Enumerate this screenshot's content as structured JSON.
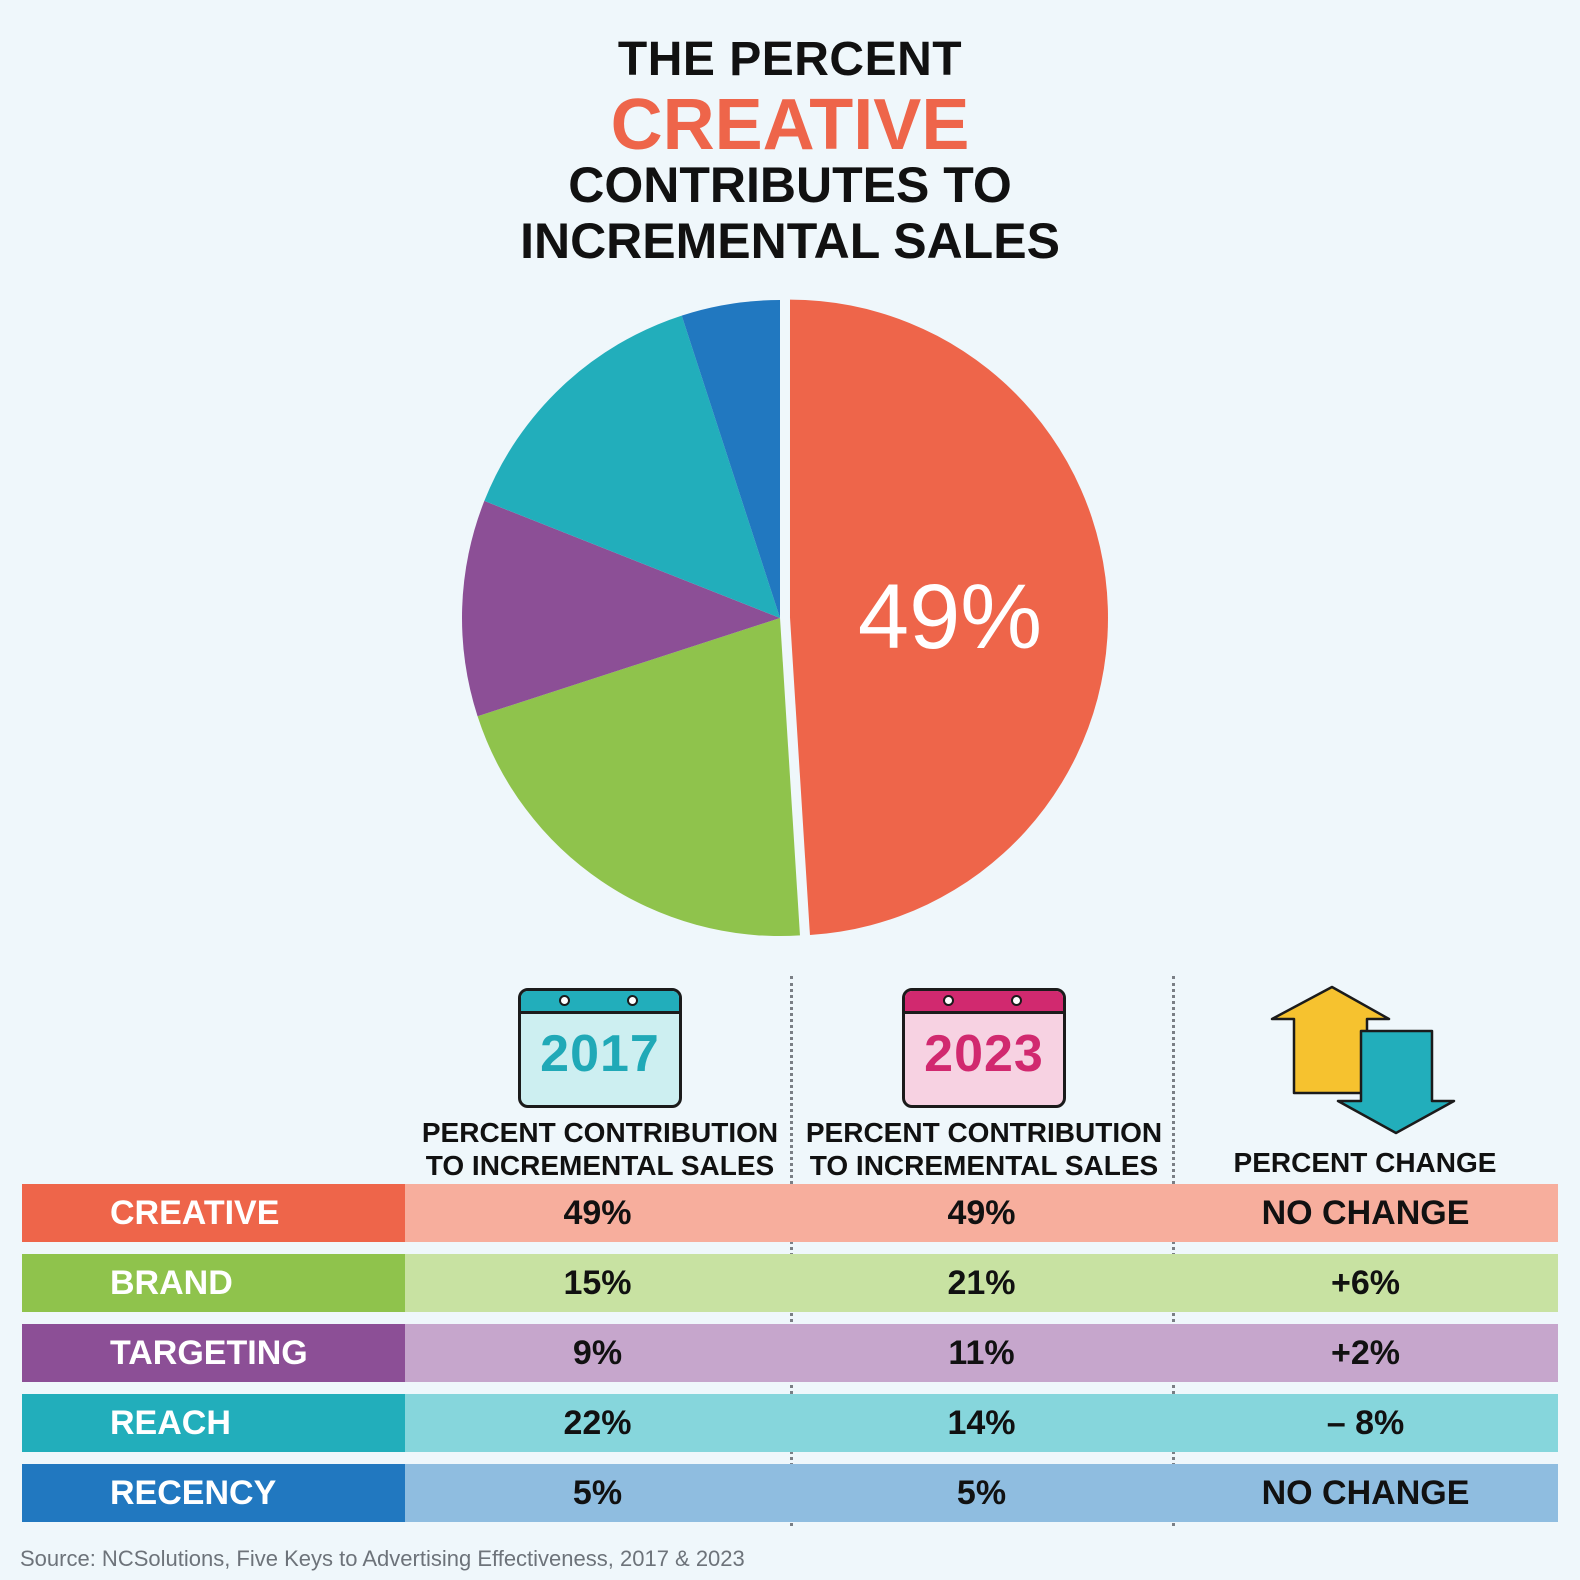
{
  "title": {
    "line1": "THE PERCENT",
    "line2": "CREATIVE",
    "line3": "CONTRIBUTES TO",
    "line4": "INCREMENTAL SALES"
  },
  "chart_data": [
    {
      "type": "pie",
      "slices": [
        {
          "label": "CREATIVE",
          "value": 49,
          "color": "#ee654a"
        },
        {
          "label": "BRAND",
          "value": 21,
          "color": "#8fc34c"
        },
        {
          "label": "TARGETING",
          "value": 11,
          "color": "#8c4f96"
        },
        {
          "label": "REACH",
          "value": 14,
          "color": "#22aebb"
        },
        {
          "label": "RECENCY",
          "value": 5,
          "color": "#2178c0"
        }
      ],
      "highlight_label": "49%"
    },
    {
      "type": "table",
      "columns": [
        {
          "year": "2017",
          "header_line1": "PERCENT CONTRIBUTION",
          "header_line2": "TO INCREMENTAL SALES"
        },
        {
          "year": "2023",
          "header_line1": "PERCENT CONTRIBUTION",
          "header_line2": "TO INCREMENTAL SALES"
        },
        {
          "header": "PERCENT CHANGE"
        }
      ],
      "rows": [
        {
          "label": "CREATIVE",
          "v2017": "49%",
          "v2023": "49%",
          "change": "NO CHANGE",
          "color": "#ee654a",
          "light": "#f7ae9d"
        },
        {
          "label": "BRAND",
          "v2017": "15%",
          "v2023": "21%",
          "change": "+6%",
          "color": "#8fc34c",
          "light": "#c8e2a2"
        },
        {
          "label": "TARGETING",
          "v2017": "9%",
          "v2023": "11%",
          "change": "+2%",
          "color": "#8c4f96",
          "light": "#c6a6cc"
        },
        {
          "label": "REACH",
          "v2017": "22%",
          "v2023": "14%",
          "change": "– 8%",
          "color": "#22aebb",
          "light": "#86d6dc"
        },
        {
          "label": "RECENCY",
          "v2017": "5%",
          "v2023": "5%",
          "change": "NO CHANGE",
          "color": "#2178c0",
          "light": "#8fbde0"
        }
      ]
    }
  ],
  "icons": {
    "calendar": "calendar-icon",
    "change": "up-down-arrows-icon"
  },
  "source": "Source: NCSolutions, Five Keys to Advertising Effectiveness, 2017 & 2023"
}
